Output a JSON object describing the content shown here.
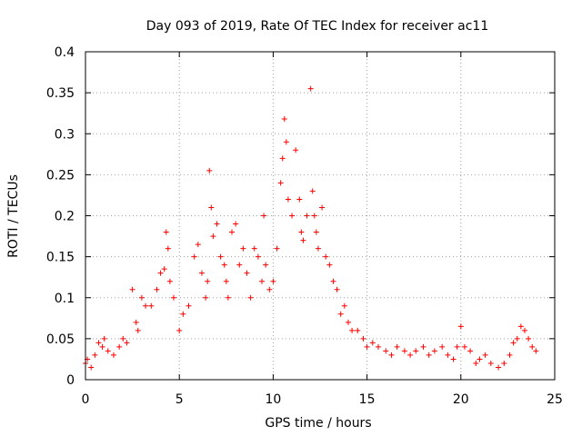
{
  "chart_data": {
    "type": "scatter",
    "title": "Day 093 of 2019, Rate Of TEC Index for receiver ac11",
    "xlabel": "GPS time / hours",
    "ylabel": "ROTI / TECUs",
    "xlim": [
      0,
      25
    ],
    "ylim": [
      0,
      0.4
    ],
    "xticks": [
      0,
      5,
      10,
      15,
      20,
      25
    ],
    "xtick_labels": [
      "0",
      "5",
      "10",
      "15",
      "20",
      "25"
    ],
    "yticks": [
      0,
      0.05,
      0.1,
      0.15,
      0.2,
      0.25,
      0.3,
      0.35,
      0.4
    ],
    "ytick_labels": [
      "0",
      "0.05",
      "0.1",
      "0.15",
      "0.2",
      "0.25",
      "0.3",
      "0.35",
      "0.4"
    ],
    "grid": true,
    "legend": "none",
    "marker": "+",
    "color": "#ff0000",
    "series": [
      {
        "x": [
          0.0,
          0.1,
          0.3,
          0.5,
          0.7,
          0.9,
          1.0,
          1.2,
          1.5,
          1.8,
          2.0,
          2.2,
          2.5,
          2.7,
          2.8,
          3.0,
          3.2,
          3.5,
          3.8,
          4.0,
          4.2,
          4.3,
          4.4,
          4.5,
          4.7,
          5.0,
          5.2,
          5.5,
          5.8,
          6.0,
          6.2,
          6.4,
          6.5,
          6.6,
          6.7,
          6.8,
          7.0,
          7.2,
          7.4,
          7.5,
          7.6,
          7.8,
          8.0,
          8.2,
          8.4,
          8.6,
          8.8,
          9.0,
          9.2,
          9.4,
          9.5,
          9.6,
          9.8,
          10.0,
          10.2,
          10.4,
          10.5,
          10.6,
          10.7,
          10.8,
          11.0,
          11.2,
          11.4,
          11.5,
          11.6,
          11.8,
          12.0,
          12.1,
          12.2,
          12.3,
          12.4,
          12.6,
          12.8,
          13.0,
          13.2,
          13.4,
          13.6,
          13.8,
          14.0,
          14.2,
          14.5,
          14.8,
          15.0,
          15.3,
          15.6,
          16.0,
          16.3,
          16.6,
          17.0,
          17.3,
          17.6,
          18.0,
          18.3,
          18.6,
          19.0,
          19.3,
          19.6,
          19.8,
          20.0,
          20.2,
          20.5,
          20.8,
          21.0,
          21.3,
          21.6,
          22.0,
          22.3,
          22.6,
          22.8,
          23.0,
          23.2,
          23.4,
          23.6,
          23.8,
          24.0
        ],
        "y": [
          0.02,
          0.025,
          0.015,
          0.03,
          0.045,
          0.04,
          0.05,
          0.035,
          0.03,
          0.04,
          0.05,
          0.045,
          0.11,
          0.07,
          0.06,
          0.1,
          0.09,
          0.09,
          0.11,
          0.13,
          0.135,
          0.18,
          0.16,
          0.12,
          0.1,
          0.06,
          0.08,
          0.09,
          0.15,
          0.165,
          0.13,
          0.1,
          0.12,
          0.255,
          0.21,
          0.175,
          0.19,
          0.15,
          0.14,
          0.12,
          0.1,
          0.18,
          0.19,
          0.14,
          0.16,
          0.13,
          0.1,
          0.16,
          0.15,
          0.12,
          0.2,
          0.14,
          0.11,
          0.12,
          0.16,
          0.24,
          0.27,
          0.318,
          0.29,
          0.22,
          0.2,
          0.28,
          0.22,
          0.18,
          0.17,
          0.2,
          0.355,
          0.23,
          0.2,
          0.18,
          0.16,
          0.21,
          0.15,
          0.14,
          0.12,
          0.11,
          0.08,
          0.09,
          0.07,
          0.06,
          0.06,
          0.05,
          0.04,
          0.045,
          0.04,
          0.035,
          0.03,
          0.04,
          0.035,
          0.03,
          0.035,
          0.04,
          0.03,
          0.035,
          0.04,
          0.03,
          0.025,
          0.04,
          0.065,
          0.04,
          0.035,
          0.02,
          0.025,
          0.03,
          0.02,
          0.015,
          0.02,
          0.03,
          0.045,
          0.05,
          0.065,
          0.06,
          0.05,
          0.04,
          0.035
        ]
      }
    ]
  }
}
